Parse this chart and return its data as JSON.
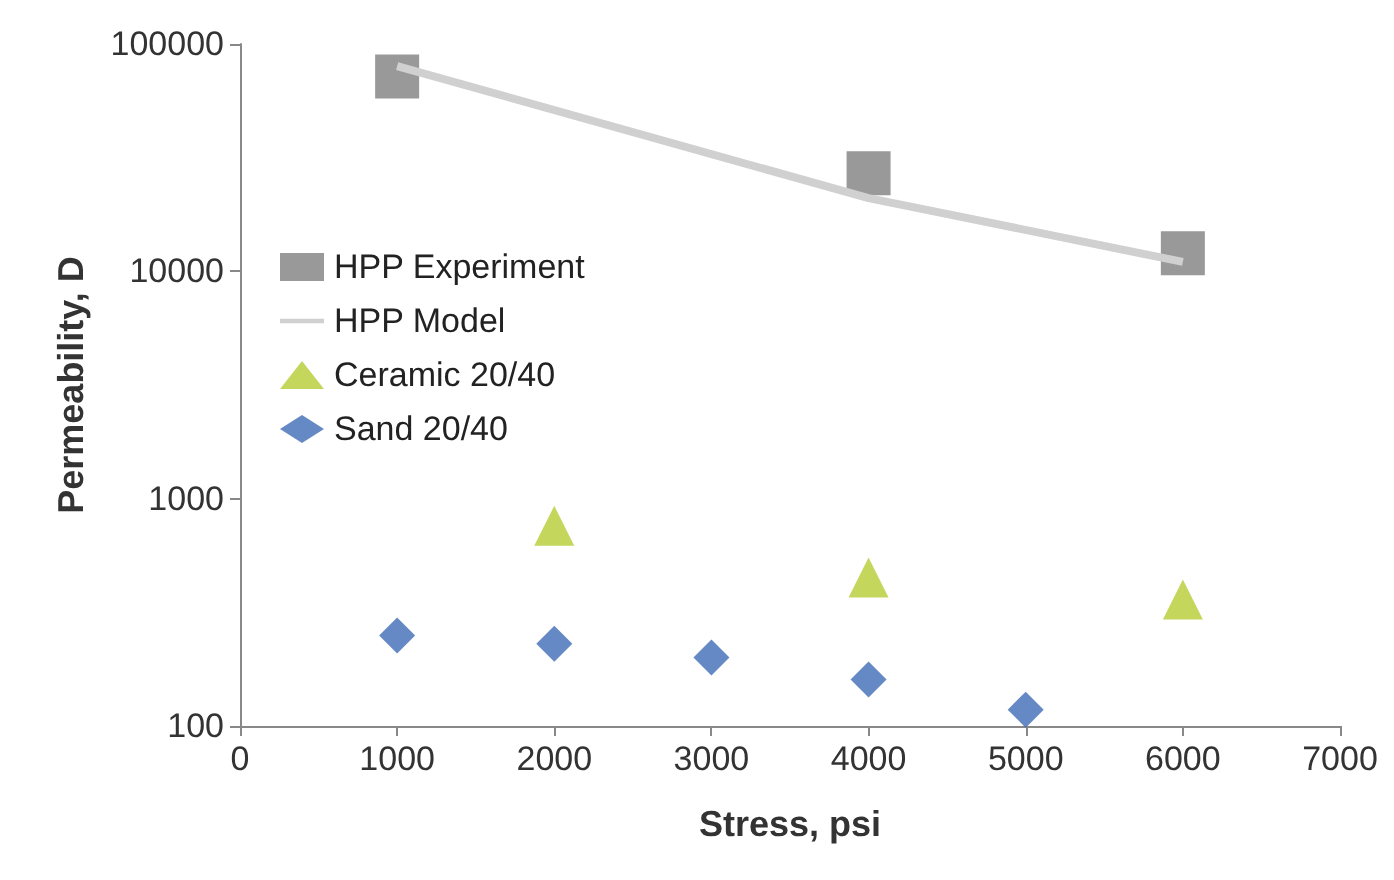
{
  "chart_data": {
    "type": "scatter",
    "xlabel": "Stress, psi",
    "ylabel": "Permeability, D",
    "xlim": [
      0,
      7000
    ],
    "xticks": [
      0,
      1000,
      2000,
      3000,
      4000,
      5000,
      6000,
      7000
    ],
    "ylim": [
      100,
      100000
    ],
    "yticks": [
      100,
      1000,
      10000,
      100000
    ],
    "log": "y",
    "grid": false,
    "legend": "left",
    "series": [
      {
        "name": "HPP Experiment",
        "marker": "square",
        "color": "#808080",
        "x": [
          1000,
          4000,
          6000
        ],
        "values": [
          72000,
          27000,
          12000
        ]
      },
      {
        "name": "HPP Model",
        "type": "line",
        "marker": "none",
        "color": "#d0d0d0",
        "x": [
          1000,
          4000,
          6000
        ],
        "values": [
          80000,
          21000,
          11000
        ]
      },
      {
        "name": "Ceramic 20/40",
        "marker": "triangle",
        "color": "#b5cc33",
        "x": [
          2000,
          4000,
          6000
        ],
        "values": [
          760,
          450,
          360
        ]
      },
      {
        "name": "Sand 20/40",
        "marker": "diamond",
        "color": "#3e6bb5",
        "x": [
          1000,
          2000,
          3000,
          4000,
          5000
        ],
        "values": [
          250,
          230,
          200,
          160,
          118
        ]
      }
    ]
  }
}
